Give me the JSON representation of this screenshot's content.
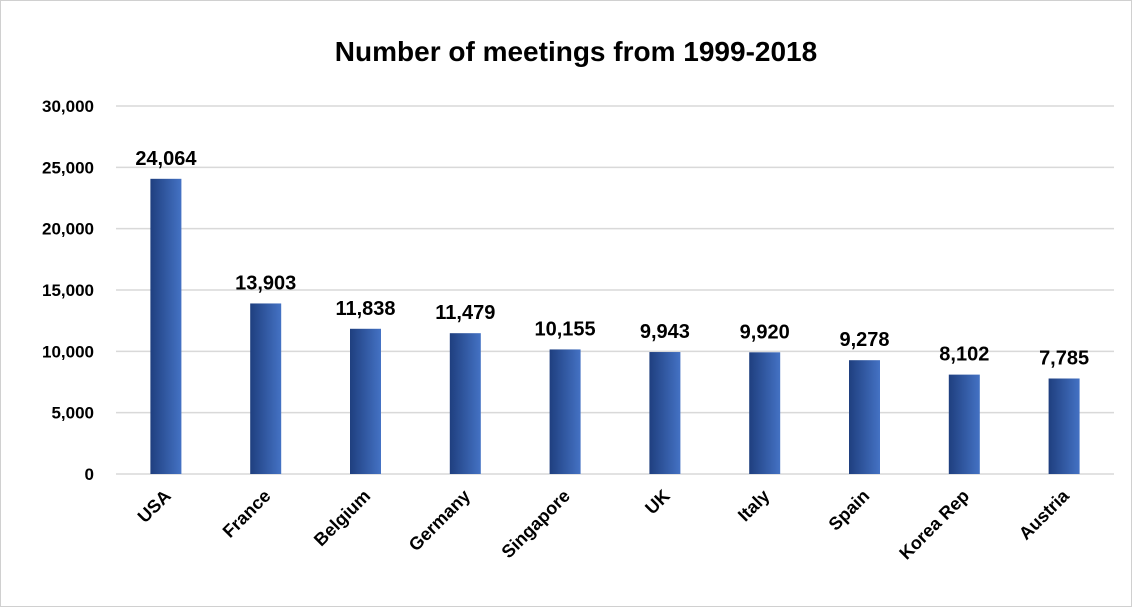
{
  "chart_data": {
    "type": "bar",
    "title": "Number of meetings from 1999-2018",
    "xlabel": "",
    "ylabel": "",
    "categories": [
      "USA",
      "France",
      "Belgium",
      "Germany",
      "Singapore",
      "UK",
      "Italy",
      "Spain",
      "Korea Rep",
      "Austria"
    ],
    "values": [
      24064,
      13903,
      11838,
      11479,
      10155,
      9943,
      9920,
      9278,
      8102,
      7785
    ],
    "value_labels": [
      "24,064",
      "13,903",
      "11,838",
      "11,479",
      "10,155",
      "9,943",
      "9,920",
      "9,278",
      "8,102",
      "7,785"
    ],
    "ylim": [
      0,
      30000
    ],
    "yticks": [
      0,
      5000,
      10000,
      15000,
      20000,
      25000,
      30000
    ],
    "ytick_labels": [
      "0",
      "5,000",
      "10,000",
      "15,000",
      "20,000",
      "25,000",
      "30,000"
    ],
    "grid": true,
    "legend": "none",
    "bar_color_dark": "#1f3f7f",
    "bar_color_light": "#4472c4"
  }
}
